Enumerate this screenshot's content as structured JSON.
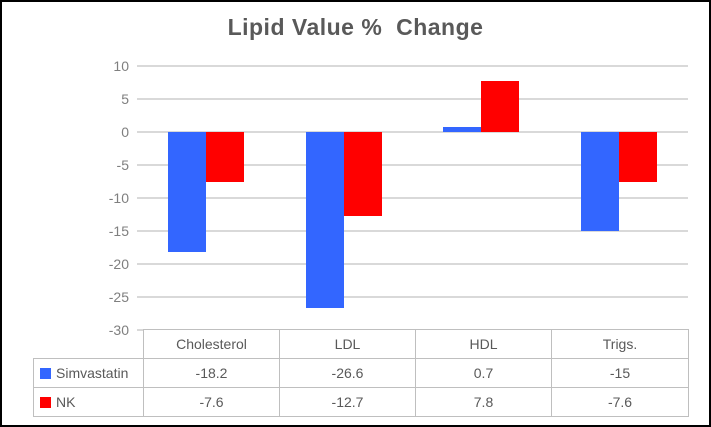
{
  "chart_data": {
    "type": "bar",
    "title": "Lipid Value %  Change",
    "categories": [
      "Cholesterol",
      "LDL",
      "HDL",
      "Trigs."
    ],
    "series": [
      {
        "name": "Simvastatin",
        "color": "#3366FF",
        "values": [
          -18.2,
          -26.6,
          0.7,
          -15
        ]
      },
      {
        "name": "NK",
        "color": "#FF0000",
        "values": [
          -7.6,
          -12.7,
          7.8,
          -7.6
        ]
      }
    ],
    "xlabel": "",
    "ylabel": "",
    "ylim": [
      -30,
      10
    ],
    "yticks": [
      10,
      5,
      0,
      -5,
      -10,
      -15,
      -20,
      -25,
      -30
    ],
    "grid": "horizontal",
    "legend_position": "data-table-left-column",
    "data_table_shown": true
  },
  "colors": {
    "title_text": "#595959",
    "tick_text": "#7F7F7F",
    "table_text": "#595959",
    "gridline": "#D9D9D9",
    "table_border": "#BFBFBF",
    "series_simvastatin": "#3366FF",
    "series_nk": "#FF0000",
    "outer_border": "#000000"
  }
}
